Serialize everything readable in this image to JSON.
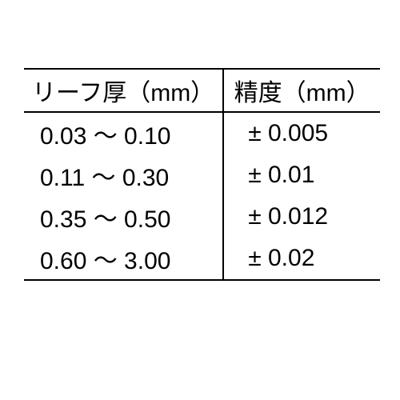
{
  "table": {
    "type": "table",
    "columns": [
      "リーフ厚（mm）",
      "精度（mm）"
    ],
    "rows": [
      [
        "0.03 〜 0.10",
        "± 0.005"
      ],
      [
        "0.11 〜 0.30",
        "± 0.01"
      ],
      [
        "0.35 〜 0.50",
        "± 0.012"
      ],
      [
        "0.60 〜 3.00",
        "± 0.02"
      ]
    ],
    "border_color": "#000000",
    "text_color": "#000000",
    "background_color": "#ffffff",
    "font_size": 30,
    "column_widths": [
      0.56,
      0.44
    ]
  }
}
